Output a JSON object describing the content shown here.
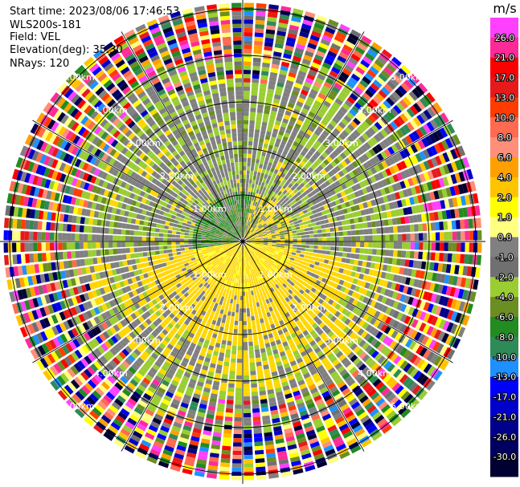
{
  "header": {
    "start_time": "Start time: 2023/08/06 17:46:53",
    "instrument": "WLS200s-181",
    "field": "Field: VEL",
    "elevation": "Elevation(deg): 35.30",
    "nrays": "NRays: 120"
  },
  "chart_data": {
    "type": "heatmap",
    "projection": "polar PPI",
    "field": "VEL",
    "n_rays": 120,
    "range_rings_km": [
      1.0,
      2.0,
      3.0,
      4.0,
      5.0
    ],
    "ring_labels": [
      "1.00km",
      "2.00km",
      "3.00km",
      "4.00km",
      "5.00km"
    ],
    "colorbar": {
      "unit_label": "m/s",
      "tick_labels": [
        "26.0",
        "21.0",
        "17.0",
        "13.0",
        "10.0",
        "8.0",
        "6.0",
        "4.0",
        "2.0",
        "1.0",
        "0.0",
        "-1.0",
        "-2.0",
        "-4.0",
        "-6.0",
        "-8.0",
        "-10.0",
        "-13.0",
        "-17.0",
        "-21.0",
        "-26.0",
        "-30.0"
      ],
      "colors": [
        "#ff40ff",
        "#ff2a98",
        "#ff0000",
        "#e61a1a",
        "#ff3c00",
        "#ff6a50",
        "#ff8e7a",
        "#ffa000",
        "#ffc400",
        "#ffff00",
        "#ffff80",
        "#808080",
        "#707070",
        "#9acd32",
        "#6b8e23",
        "#228b22",
        "#2e8b57",
        "#1e90ff",
        "#0000ff",
        "#0000cd",
        "#00008b",
        "#000060",
        "#000033"
      ]
    },
    "grid": true
  }
}
